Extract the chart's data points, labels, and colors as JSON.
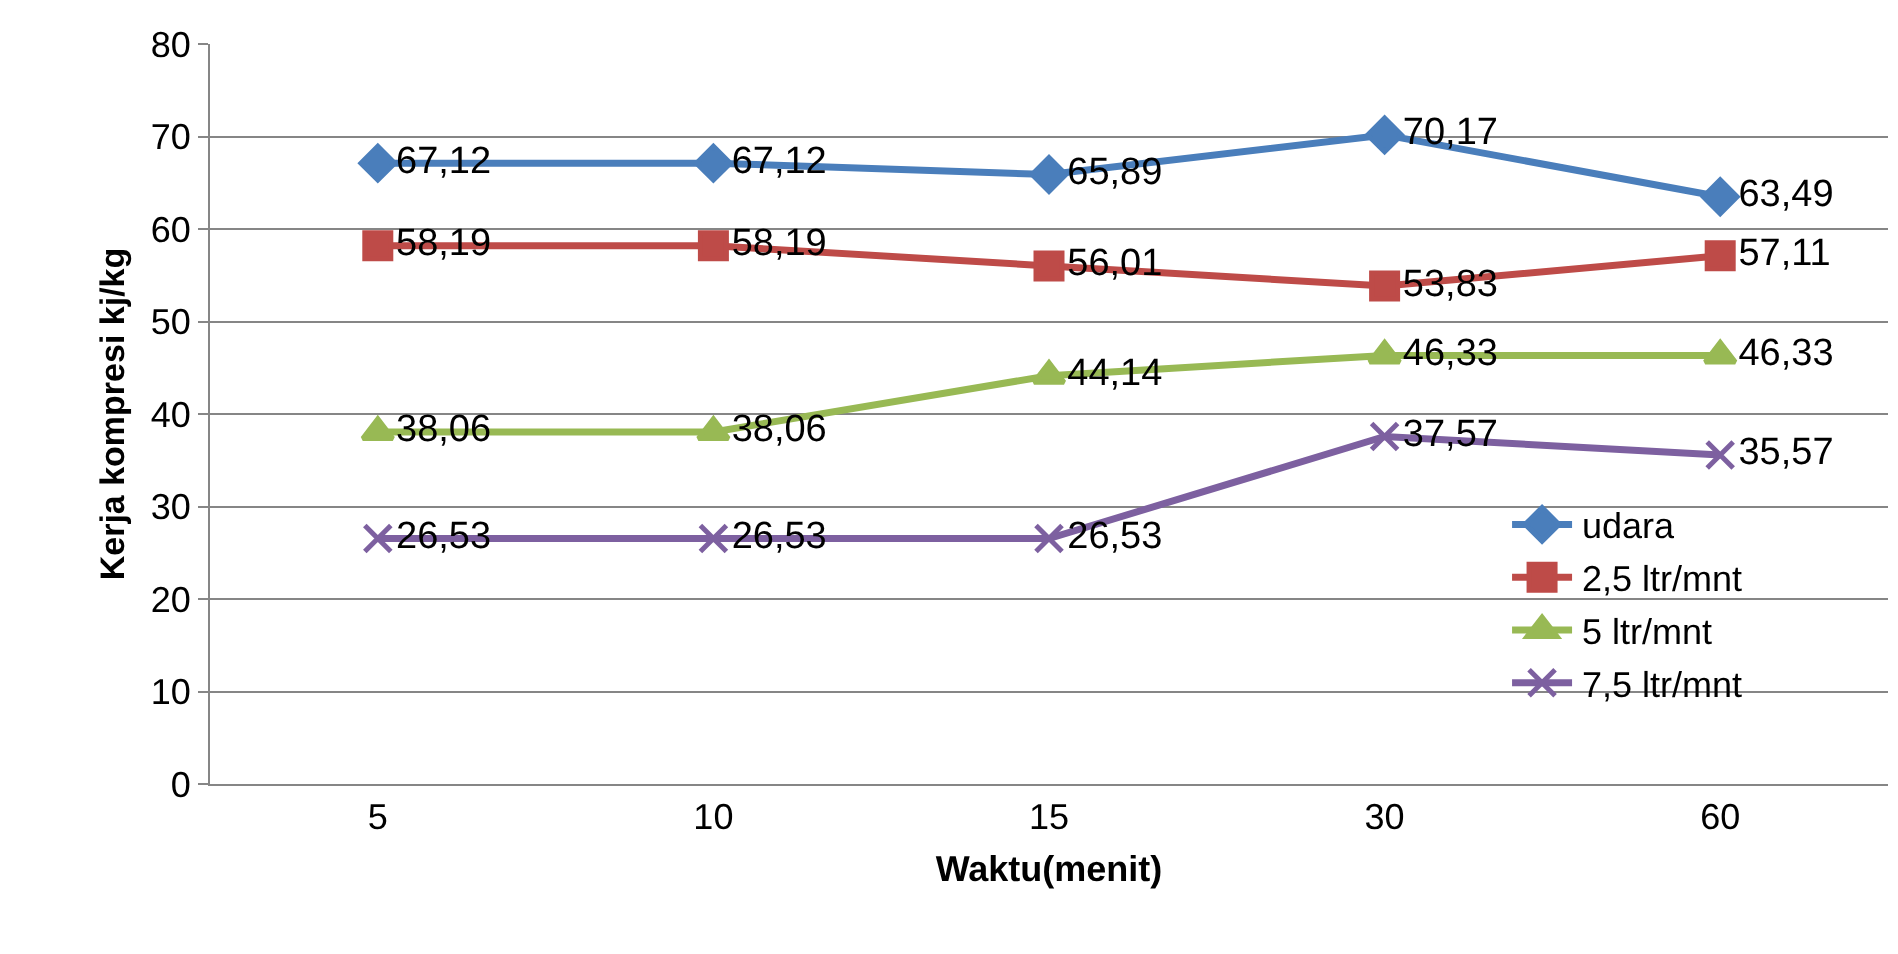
{
  "chart_data": {
    "type": "line",
    "xlabel": "Waktu(menit)",
    "ylabel": "Kerja kompresi kj/kg",
    "categories": [
      "5",
      "10",
      "15",
      "30",
      "60"
    ],
    "ylim": [
      0,
      80
    ],
    "yticks": [
      0,
      10,
      20,
      30,
      40,
      50,
      60,
      70,
      80
    ],
    "grid": "y",
    "legend": "bottom right",
    "series": [
      {
        "name": "udara",
        "color": "#4a7ebb",
        "marker": "diamond",
        "values": [
          67.12,
          67.12,
          65.89,
          70.17,
          63.49
        ],
        "value_labels": [
          "67,12",
          "67,12",
          "65,89",
          "70,17",
          "63,49"
        ]
      },
      {
        "name": "2,5 ltr/mnt",
        "color": "#be4b48",
        "marker": "square",
        "values": [
          58.19,
          58.19,
          56.01,
          53.83,
          57.11
        ],
        "value_labels": [
          "58,19",
          "58,19",
          "56,01",
          "53,83",
          "57,11"
        ]
      },
      {
        "name": "5 ltr/mnt",
        "color": "#98b954",
        "marker": "triangle",
        "values": [
          38.06,
          38.06,
          44.14,
          46.33,
          46.33
        ],
        "value_labels": [
          "38,06",
          "38,06",
          "44,14",
          "46,33",
          "46,33"
        ]
      },
      {
        "name": "7,5 ltr/mnt",
        "color": "#7d60a0",
        "marker": "cross",
        "values": [
          26.53,
          26.53,
          26.53,
          37.57,
          35.57
        ],
        "value_labels": [
          "26,53",
          "26,53",
          "26,53",
          "37,57",
          "35,57"
        ]
      }
    ]
  }
}
